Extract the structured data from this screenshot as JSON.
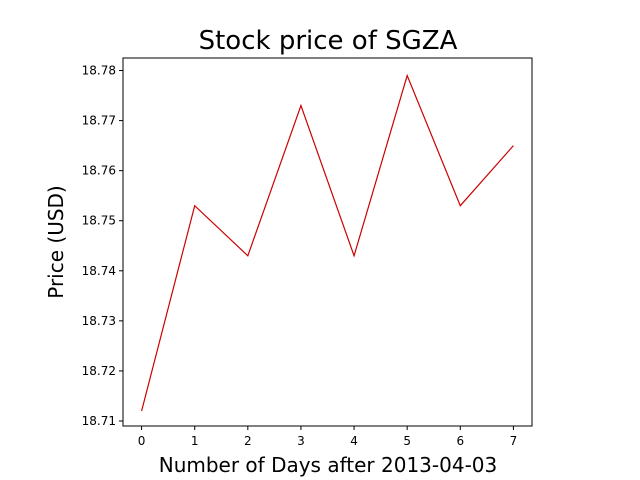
{
  "chart_data": {
    "type": "line",
    "title": "Stock price of SGZA",
    "xlabel": "Number of Days after 2013-04-03",
    "ylabel": "Price (USD)",
    "x": [
      0,
      1,
      2,
      3,
      4,
      5,
      6,
      7
    ],
    "series": [
      {
        "values": [
          18.712,
          18.753,
          18.743,
          18.773,
          18.743,
          18.779,
          18.753,
          18.765
        ],
        "color": "#cc0000"
      }
    ],
    "xlim": [
      -0.35,
      7.35
    ],
    "ylim": [
      18.709,
      18.7825
    ],
    "xticks": [
      0,
      1,
      2,
      3,
      4,
      5,
      6,
      7
    ],
    "yticks": [
      18.71,
      18.72,
      18.73,
      18.74,
      18.75,
      18.76,
      18.77,
      18.78
    ],
    "ytick_labels": [
      "18.71",
      "18.72",
      "18.73",
      "18.74",
      "18.75",
      "18.76",
      "18.77",
      "18.78"
    ],
    "grid": false,
    "legend": "none"
  }
}
